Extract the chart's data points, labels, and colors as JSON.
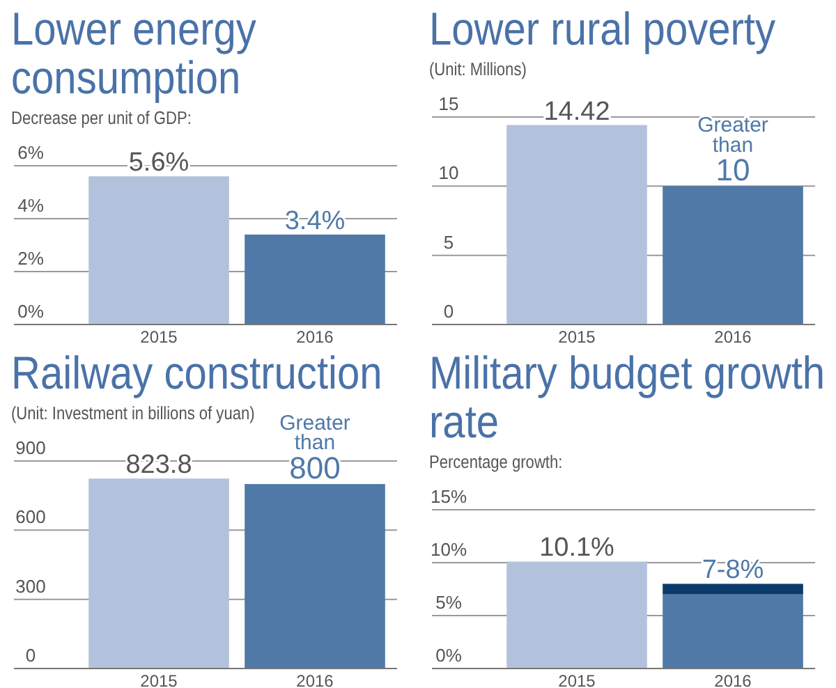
{
  "chart_data": [
    {
      "type": "bar",
      "title": "Lower energy consumption",
      "subtitle": "Decrease per unit of GDP:",
      "categories": [
        "2015",
        "2016"
      ],
      "values": [
        5.6,
        3.4
      ],
      "colors": [
        "#b3c2dc",
        "#5079a8"
      ],
      "value_labels": [
        "5.6%",
        "3.4%"
      ],
      "ylim": [
        0,
        6
      ],
      "yticks": [
        {
          "value": 0,
          "label": "0%"
        },
        {
          "value": 2,
          "label": "2%"
        },
        {
          "value": 4,
          "label": "4%"
        },
        {
          "value": 6,
          "label": "6%"
        }
      ],
      "grid": "y"
    },
    {
      "type": "bar",
      "title": "Lower rural poverty",
      "subtitle": "(Unit: Millions)",
      "categories": [
        "2015",
        "2016"
      ],
      "values": [
        14.42,
        10
      ],
      "colors": [
        "#b3c2dc",
        "#5079a8"
      ],
      "value_labels": [
        "14.42",
        "Greater than 10"
      ],
      "ylim": [
        0,
        15
      ],
      "yticks": [
        0,
        5,
        10,
        15
      ],
      "grid": "y"
    },
    {
      "type": "bar",
      "title": "Railway construction",
      "subtitle": "(Unit: Investment in billions of  yuan)",
      "categories": [
        "2015",
        "2016"
      ],
      "values": [
        823.8,
        800
      ],
      "colors": [
        "#b3c2dc",
        "#5079a8"
      ],
      "value_labels": [
        "823.8",
        "Greater than 800"
      ],
      "ylim": [
        0,
        900
      ],
      "yticks": [
        0,
        300,
        600,
        900
      ],
      "grid": "y"
    },
    {
      "type": "bar",
      "title": "Military budget growth rate",
      "subtitle": "Percentage growth:",
      "categories": [
        "2015",
        "2016"
      ],
      "stacked": true,
      "series": [
        {
          "values": [
            10.1,
            7
          ],
          "colors": [
            "#b3c2dc",
            "#5079a8"
          ],
          "value_labels": [
            "10.1%",
            null
          ]
        },
        {
          "values": [
            null,
            1
          ],
          "color": "#0b3b6b"
        }
      ],
      "annotations": [
        {
          "text": "7-8%",
          "x": "2016",
          "y": 8
        }
      ],
      "ylim": [
        0,
        15
      ],
      "yticks": [
        {
          "value": 0,
          "label": "0%"
        },
        {
          "value": 5,
          "label": "5%"
        },
        {
          "value": 10,
          "label": "10%"
        },
        {
          "value": 15,
          "label": "15%"
        }
      ],
      "grid": "y"
    }
  ]
}
